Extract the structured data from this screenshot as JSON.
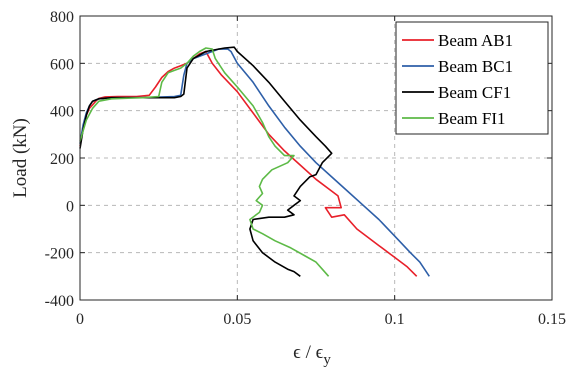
{
  "chart_data": {
    "type": "line",
    "title": "",
    "xlabel_main": "ϵ / ϵ",
    "xlabel_sub": "y",
    "ylabel": "Load (kN)",
    "xlim": [
      0,
      0.15
    ],
    "ylim": [
      -400,
      800
    ],
    "xticks": [
      0,
      0.05,
      0.1,
      0.15
    ],
    "xtick_labels": [
      "0",
      "0.05",
      "0.1",
      "0.15"
    ],
    "yticks": [
      -400,
      -200,
      0,
      200,
      400,
      600,
      800
    ],
    "ytick_labels": [
      "-400",
      "-200",
      "0",
      "200",
      "400",
      "600",
      "800"
    ],
    "grid": true,
    "legend_position": "top-right",
    "series": [
      {
        "name": "Beam AB1",
        "color": "#e8202a",
        "points": [
          [
            0,
            250
          ],
          [
            0.001,
            330
          ],
          [
            0.002,
            380
          ],
          [
            0.003,
            410
          ],
          [
            0.004,
            425
          ],
          [
            0.005,
            440
          ],
          [
            0.006,
            452
          ],
          [
            0.008,
            458
          ],
          [
            0.012,
            460
          ],
          [
            0.018,
            460
          ],
          [
            0.022,
            465
          ],
          [
            0.024,
            500
          ],
          [
            0.026,
            540
          ],
          [
            0.028,
            565
          ],
          [
            0.03,
            580
          ],
          [
            0.032,
            590
          ],
          [
            0.034,
            600
          ],
          [
            0.036,
            620
          ],
          [
            0.038,
            640
          ],
          [
            0.04,
            650
          ],
          [
            0.042,
            600
          ],
          [
            0.045,
            550
          ],
          [
            0.05,
            480
          ],
          [
            0.055,
            390
          ],
          [
            0.06,
            300
          ],
          [
            0.065,
            230
          ],
          [
            0.07,
            170
          ],
          [
            0.075,
            110
          ],
          [
            0.08,
            60
          ],
          [
            0.082,
            40
          ],
          [
            0.083,
            -10
          ],
          [
            0.078,
            -10
          ],
          [
            0.08,
            -50
          ],
          [
            0.084,
            -40
          ],
          [
            0.088,
            -100
          ],
          [
            0.095,
            -170
          ],
          [
            0.1,
            -220
          ],
          [
            0.104,
            -260
          ],
          [
            0.107,
            -300
          ]
        ]
      },
      {
        "name": "Beam BC1",
        "color": "#2e5fa8",
        "points": [
          [
            0,
            260
          ],
          [
            0.001,
            340
          ],
          [
            0.002,
            390
          ],
          [
            0.003,
            420
          ],
          [
            0.004,
            440
          ],
          [
            0.006,
            450
          ],
          [
            0.01,
            455
          ],
          [
            0.02,
            455
          ],
          [
            0.03,
            460
          ],
          [
            0.032,
            465
          ],
          [
            0.033,
            550
          ],
          [
            0.034,
            600
          ],
          [
            0.036,
            620
          ],
          [
            0.04,
            640
          ],
          [
            0.044,
            660
          ],
          [
            0.047,
            660
          ],
          [
            0.048,
            650
          ],
          [
            0.05,
            600
          ],
          [
            0.055,
            520
          ],
          [
            0.06,
            420
          ],
          [
            0.065,
            330
          ],
          [
            0.07,
            250
          ],
          [
            0.075,
            180
          ],
          [
            0.08,
            120
          ],
          [
            0.085,
            60
          ],
          [
            0.09,
            0
          ],
          [
            0.095,
            -60
          ],
          [
            0.1,
            -130
          ],
          [
            0.105,
            -200
          ],
          [
            0.108,
            -240
          ],
          [
            0.111,
            -300
          ]
        ]
      },
      {
        "name": "Beam CF1",
        "color": "#000000",
        "points": [
          [
            0,
            240
          ],
          [
            0.001,
            320
          ],
          [
            0.002,
            380
          ],
          [
            0.003,
            420
          ],
          [
            0.004,
            440
          ],
          [
            0.006,
            450
          ],
          [
            0.01,
            455
          ],
          [
            0.02,
            455
          ],
          [
            0.03,
            455
          ],
          [
            0.032,
            460
          ],
          [
            0.033,
            470
          ],
          [
            0.034,
            580
          ],
          [
            0.036,
            620
          ],
          [
            0.04,
            650
          ],
          [
            0.044,
            660
          ],
          [
            0.046,
            665
          ],
          [
            0.049,
            668
          ],
          [
            0.05,
            650
          ],
          [
            0.055,
            590
          ],
          [
            0.06,
            520
          ],
          [
            0.065,
            440
          ],
          [
            0.07,
            360
          ],
          [
            0.075,
            290
          ],
          [
            0.078,
            250
          ],
          [
            0.08,
            220
          ],
          [
            0.077,
            180
          ],
          [
            0.075,
            130
          ],
          [
            0.073,
            120
          ],
          [
            0.07,
            80
          ],
          [
            0.068,
            40
          ],
          [
            0.07,
            20
          ],
          [
            0.068,
            0
          ],
          [
            0.066,
            -20
          ],
          [
            0.068,
            -40
          ],
          [
            0.065,
            -50
          ],
          [
            0.06,
            -50
          ],
          [
            0.055,
            -60
          ],
          [
            0.054,
            -100
          ],
          [
            0.055,
            -150
          ],
          [
            0.058,
            -200
          ],
          [
            0.062,
            -240
          ],
          [
            0.066,
            -270
          ],
          [
            0.068,
            -280
          ],
          [
            0.07,
            -300
          ]
        ]
      },
      {
        "name": "Beam FI1",
        "color": "#5dba47",
        "points": [
          [
            0,
            270
          ],
          [
            0.002,
            360
          ],
          [
            0.004,
            410
          ],
          [
            0.006,
            440
          ],
          [
            0.01,
            450
          ],
          [
            0.02,
            455
          ],
          [
            0.025,
            460
          ],
          [
            0.026,
            520
          ],
          [
            0.028,
            560
          ],
          [
            0.03,
            570
          ],
          [
            0.032,
            580
          ],
          [
            0.034,
            600
          ],
          [
            0.036,
            630
          ],
          [
            0.038,
            650
          ],
          [
            0.04,
            665
          ],
          [
            0.042,
            660
          ],
          [
            0.043,
            620
          ],
          [
            0.046,
            560
          ],
          [
            0.05,
            500
          ],
          [
            0.055,
            420
          ],
          [
            0.058,
            350
          ],
          [
            0.06,
            290
          ],
          [
            0.062,
            250
          ],
          [
            0.065,
            210
          ],
          [
            0.068,
            210
          ],
          [
            0.066,
            180
          ],
          [
            0.061,
            150
          ],
          [
            0.058,
            110
          ],
          [
            0.057,
            80
          ],
          [
            0.058,
            50
          ],
          [
            0.056,
            20
          ],
          [
            0.058,
            0
          ],
          [
            0.057,
            -30
          ],
          [
            0.054,
            -60
          ],
          [
            0.055,
            -100
          ],
          [
            0.058,
            -120
          ],
          [
            0.062,
            -150
          ],
          [
            0.067,
            -180
          ],
          [
            0.071,
            -210
          ],
          [
            0.075,
            -240
          ],
          [
            0.077,
            -270
          ],
          [
            0.079,
            -300
          ]
        ]
      }
    ]
  }
}
